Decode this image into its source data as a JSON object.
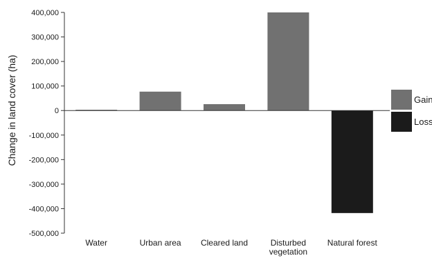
{
  "chart_data": {
    "type": "bar",
    "categories": [
      "Water",
      "Urban area",
      "Cleared land",
      "Disturbed vegetation",
      "Natural forest"
    ],
    "category_lines": [
      [
        "Water"
      ],
      [
        "Urban area"
      ],
      [
        "Cleared land"
      ],
      [
        "Disturbed",
        "vegetation"
      ],
      [
        "Natural forest"
      ]
    ],
    "values": [
      3000,
      77000,
      26000,
      400000,
      -418000
    ],
    "bar_kind": [
      "gain",
      "gain",
      "gain",
      "gain",
      "loss"
    ],
    "ylabel": "Change in land cover (ha)",
    "xlabel": "",
    "ylim": [
      -500000,
      400000
    ],
    "yticks": [
      400000,
      300000,
      200000,
      100000,
      0,
      -100000,
      -200000,
      -300000,
      -400000,
      -500000
    ],
    "ytick_labels": [
      "400,000",
      "300,000",
      "200,000",
      "100,000",
      "0",
      "-100,000",
      "-200,000",
      "-300,000",
      "-400,000",
      "-500,000"
    ],
    "legend": [
      {
        "key": "gain",
        "label": "Gain",
        "color": "#717171"
      },
      {
        "key": "loss",
        "label": "Loss",
        "color": "#1b1b1b"
      }
    ],
    "legend_position": "right",
    "grid": false
  }
}
